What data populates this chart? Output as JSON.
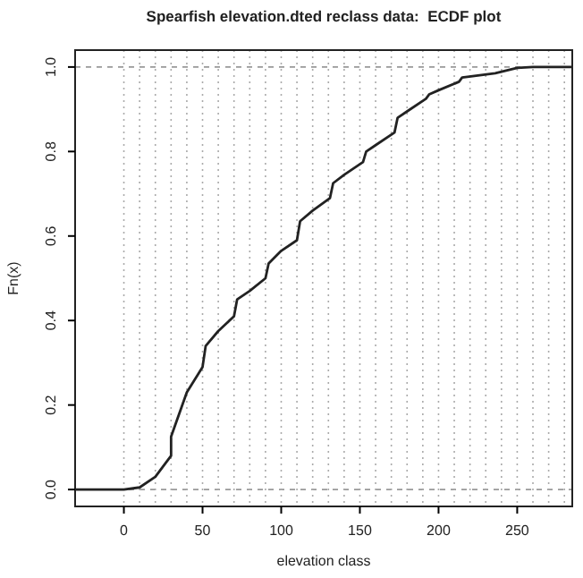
{
  "chart_data": {
    "type": "line",
    "title": "Spearfish elevation.dted reclass data:  ECDF plot",
    "xlabel": "elevation class",
    "ylabel": "Fn(x)",
    "x": [
      -31,
      0,
      10,
      20,
      30,
      30,
      40,
      50,
      52,
      60,
      70,
      72,
      80,
      90,
      92,
      100,
      110,
      112,
      120,
      131,
      133,
      140,
      152,
      154,
      160,
      172,
      174,
      180,
      192,
      194,
      200,
      213,
      215,
      225,
      236,
      250,
      260,
      285
    ],
    "series": [
      {
        "color": "#222222",
        "values": [
          0,
          0,
          0.005,
          0.03,
          0.08,
          0.125,
          0.23,
          0.29,
          0.34,
          0.375,
          0.41,
          0.45,
          0.47,
          0.5,
          0.535,
          0.565,
          0.59,
          0.635,
          0.66,
          0.69,
          0.725,
          0.745,
          0.775,
          0.8,
          0.815,
          0.845,
          0.88,
          0.895,
          0.925,
          0.935,
          0.945,
          0.965,
          0.975,
          0.98,
          0.985,
          0.998,
          1,
          1
        ]
      }
    ],
    "xlim": [
      -31,
      285
    ],
    "xticks": [
      0,
      50,
      100,
      150,
      200,
      250
    ],
    "ylim": [
      -0.04,
      1.04
    ],
    "yticks": [
      {
        "value": 0,
        "label": "0.0"
      },
      {
        "value": 0.2,
        "label": "0.2"
      },
      {
        "value": 0.4,
        "label": "0.4"
      },
      {
        "value": 0.6,
        "label": "0.6"
      },
      {
        "value": 0.8,
        "label": "0.8"
      },
      {
        "value": 1,
        "label": "1.0"
      }
    ],
    "ref_lines": [
      {
        "axis": "y",
        "value": 0,
        "color": "#999999",
        "line_style": "dashed"
      },
      {
        "axis": "y",
        "value": 1,
        "color": "#999999",
        "line_style": "dashed"
      },
      {
        "axis": "x",
        "value": 0,
        "color": "#aaaaaa",
        "line_style": "dotted"
      },
      {
        "axis": "x",
        "value": 10,
        "color": "#aaaaaa",
        "line_style": "dotted"
      },
      {
        "axis": "x",
        "value": 20,
        "color": "#aaaaaa",
        "line_style": "dotted"
      },
      {
        "axis": "x",
        "value": 30,
        "color": "#aaaaaa",
        "line_style": "dotted"
      },
      {
        "axis": "x",
        "value": 40,
        "color": "#aaaaaa",
        "line_style": "dotted"
      },
      {
        "axis": "x",
        "value": 50,
        "color": "#aaaaaa",
        "line_style": "dotted"
      },
      {
        "axis": "x",
        "value": 60,
        "color": "#aaaaaa",
        "line_style": "dotted"
      },
      {
        "axis": "x",
        "value": 70,
        "color": "#aaaaaa",
        "line_style": "dotted"
      },
      {
        "axis": "x",
        "value": 80,
        "color": "#aaaaaa",
        "line_style": "dotted"
      },
      {
        "axis": "x",
        "value": 90,
        "color": "#aaaaaa",
        "line_style": "dotted"
      },
      {
        "axis": "x",
        "value": 100,
        "color": "#aaaaaa",
        "line_style": "dotted"
      },
      {
        "axis": "x",
        "value": 110,
        "color": "#aaaaaa",
        "line_style": "dotted"
      },
      {
        "axis": "x",
        "value": 120,
        "color": "#aaaaaa",
        "line_style": "dotted"
      },
      {
        "axis": "x",
        "value": 130,
        "color": "#aaaaaa",
        "line_style": "dotted"
      },
      {
        "axis": "x",
        "value": 140,
        "color": "#aaaaaa",
        "line_style": "dotted"
      },
      {
        "axis": "x",
        "value": 150,
        "color": "#aaaaaa",
        "line_style": "dotted"
      },
      {
        "axis": "x",
        "value": 160,
        "color": "#aaaaaa",
        "line_style": "dotted"
      },
      {
        "axis": "x",
        "value": 170,
        "color": "#aaaaaa",
        "line_style": "dotted"
      },
      {
        "axis": "x",
        "value": 180,
        "color": "#aaaaaa",
        "line_style": "dotted"
      },
      {
        "axis": "x",
        "value": 190,
        "color": "#aaaaaa",
        "line_style": "dotted"
      },
      {
        "axis": "x",
        "value": 200,
        "color": "#aaaaaa",
        "line_style": "dotted"
      },
      {
        "axis": "x",
        "value": 210,
        "color": "#aaaaaa",
        "line_style": "dotted"
      },
      {
        "axis": "x",
        "value": 220,
        "color": "#aaaaaa",
        "line_style": "dotted"
      },
      {
        "axis": "x",
        "value": 230,
        "color": "#aaaaaa",
        "line_style": "dotted"
      },
      {
        "axis": "x",
        "value": 240,
        "color": "#aaaaaa",
        "line_style": "dotted"
      },
      {
        "axis": "x",
        "value": 250,
        "color": "#aaaaaa",
        "line_style": "dotted"
      },
      {
        "axis": "x",
        "value": 260,
        "color": "#aaaaaa",
        "line_style": "dotted"
      },
      {
        "axis": "x",
        "value": 270,
        "color": "#aaaaaa",
        "line_style": "dotted"
      },
      {
        "axis": "x",
        "value": 280,
        "color": "#aaaaaa",
        "line_style": "dotted"
      }
    ],
    "grid": false,
    "marker": "none",
    "line_style": "solid"
  }
}
